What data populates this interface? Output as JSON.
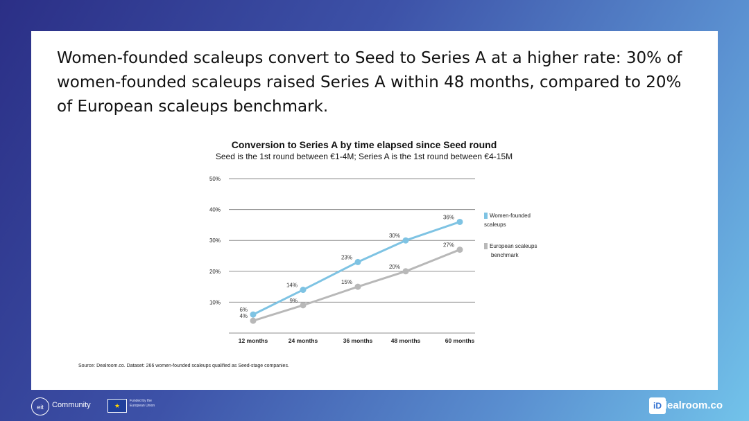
{
  "headline": "Women-founded scaleups convert to Seed to Series A at a higher rate: 30% of women-founded scaleups raised Series A within 48 months, compared to 20% of European scaleups benchmark.",
  "source": "Source: Dealroom.co. Dataset: 266 women-founded scaleups qualified as Seed-stage companies.",
  "footer": {
    "eit_logo": "eit",
    "eit_community": "Community",
    "eu_flag": "★",
    "eu_funding": "Funded by the European Union",
    "dealroom_logo": "iD",
    "dealroom": "dealroom.co"
  },
  "colors": {
    "women": "#7ec3e3",
    "benchmark": "#b8b8b8",
    "grid": "#8c8c8c"
  },
  "chart_data": {
    "type": "line",
    "title": "Conversion to Series A by time elapsed since Seed round",
    "subtitle": "Seed is the 1st round between €1-4M; Series A is the 1st round between €4-15M",
    "categories": [
      "12 months",
      "24 months",
      "36 months",
      "48 months",
      "60 months"
    ],
    "yticks": [
      "10%",
      "20%",
      "30%",
      "40%",
      "50%"
    ],
    "ylim": [
      0,
      50
    ],
    "grid": true,
    "legend_position": "right",
    "series": [
      {
        "name": "Women-founded scaleups",
        "legend_lines": [
          "Women-founded",
          "scaleups"
        ],
        "values": [
          6,
          14,
          23,
          30,
          36
        ],
        "labels": [
          "6%",
          "14%",
          "23%",
          "30%",
          "36%"
        ]
      },
      {
        "name": "European scaleups benchmark",
        "legend_lines": [
          "European scaleups",
          "benchmark"
        ],
        "values": [
          4,
          9,
          15,
          20,
          27
        ],
        "labels": [
          "4%",
          "9%",
          "15%",
          "20%",
          "27%"
        ]
      }
    ]
  }
}
